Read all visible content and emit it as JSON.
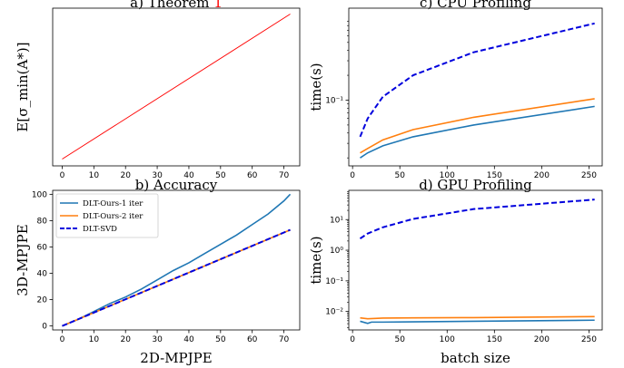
{
  "chart_data": [
    {
      "type": "line",
      "title": "a) Theorem",
      "title_ref": "1",
      "ylabel": "E[σ_min(A*)]",
      "xlabel": "",
      "xlim": [
        -3,
        75
      ],
      "ylim": [
        -8,
        178
      ],
      "x_ticks": [
        "0",
        "10",
        "20",
        "30",
        "40",
        "50",
        "60",
        "70"
      ],
      "grid": false,
      "series": [
        {
          "color": "#ff0000",
          "x": [
            0,
            72
          ],
          "y": [
            0,
            171
          ]
        }
      ]
    },
    {
      "type": "line",
      "title": "b) Accuracy",
      "xlabel": "2D-MPJPE",
      "ylabel": "3D-MPJPE",
      "xlim": [
        -3,
        75
      ],
      "ylim": [
        -3,
        103
      ],
      "x_ticks": [
        "0",
        "10",
        "20",
        "30",
        "40",
        "50",
        "60",
        "70"
      ],
      "y_ticks": [
        "0",
        "20",
        "40",
        "60",
        "80",
        "100"
      ],
      "grid": false,
      "legend": "top-left",
      "series": [
        {
          "name": "DLT-Ours-1 iter",
          "color": "#1f77b4",
          "style": "solid",
          "x": [
            0,
            5,
            10,
            15,
            20,
            25,
            30,
            35,
            40,
            45,
            50,
            55,
            60,
            65,
            70,
            72
          ],
          "y": [
            0,
            5,
            11,
            17,
            22,
            28,
            35,
            42,
            48,
            55,
            62,
            69,
            77,
            85,
            95,
            100
          ]
        },
        {
          "name": "DLT-Ours-2 iter",
          "color": "#ff7f0e",
          "style": "solid",
          "x": [
            0,
            72
          ],
          "y": [
            0,
            73
          ]
        },
        {
          "name": "DLT-SVD",
          "color": "#0000dd",
          "style": "dashed",
          "x": [
            0,
            72
          ],
          "y": [
            0,
            73
          ]
        }
      ]
    },
    {
      "type": "line",
      "title": "c) CPU Profiling",
      "xlabel": "",
      "ylabel": "time(s)",
      "yscale": "log",
      "xlim": [
        -4,
        264
      ],
      "ylim": [
        0.016,
        1.3
      ],
      "x_ticks": [
        "0",
        "50",
        "100",
        "150",
        "200",
        "250"
      ],
      "y_ticks": [
        {
          "value": 0.1,
          "label": "10⁻¹"
        }
      ],
      "grid": false,
      "series": [
        {
          "color": "#0000dd",
          "style": "dashed",
          "x": [
            8,
            16,
            32,
            64,
            128,
            256
          ],
          "y": [
            0.036,
            0.06,
            0.11,
            0.2,
            0.38,
            0.85
          ]
        },
        {
          "color": "#ff7f0e",
          "style": "solid",
          "x": [
            8,
            16,
            32,
            64,
            128,
            256
          ],
          "y": [
            0.023,
            0.026,
            0.033,
            0.044,
            0.062,
            0.104
          ]
        },
        {
          "color": "#1f77b4",
          "style": "solid",
          "x": [
            8,
            16,
            32,
            64,
            128,
            256
          ],
          "y": [
            0.02,
            0.023,
            0.028,
            0.036,
            0.05,
            0.084
          ]
        }
      ]
    },
    {
      "type": "line",
      "title": "d) GPU Profiling",
      "xlabel": "batch size",
      "ylabel": "time(s)",
      "yscale": "log",
      "xlim": [
        -4,
        264
      ],
      "ylim": [
        0.0025,
        90
      ],
      "x_ticks": [
        "0",
        "50",
        "100",
        "150",
        "200",
        "250"
      ],
      "y_ticks": [
        {
          "value": 0.01,
          "label": "10⁻²"
        },
        {
          "value": 0.1,
          "label": "10⁻¹"
        },
        {
          "value": 1,
          "label": "10⁰"
        },
        {
          "value": 10,
          "label": "10¹"
        }
      ],
      "grid": false,
      "series": [
        {
          "color": "#0000dd",
          "style": "dashed",
          "x": [
            8,
            16,
            32,
            64,
            128,
            256
          ],
          "y": [
            2.4,
            3.5,
            5.6,
            10.5,
            22,
            45
          ]
        },
        {
          "color": "#ff7f0e",
          "style": "solid",
          "x": [
            8,
            16,
            32,
            64,
            128,
            256
          ],
          "y": [
            0.0062,
            0.0058,
            0.0061,
            0.0062,
            0.0063,
            0.0068
          ]
        },
        {
          "color": "#1f77b4",
          "style": "solid",
          "x": [
            8,
            16,
            20,
            32,
            64,
            128,
            256
          ],
          "y": [
            0.0048,
            0.0041,
            0.0045,
            0.0045,
            0.0046,
            0.0048,
            0.0052
          ]
        }
      ]
    }
  ]
}
